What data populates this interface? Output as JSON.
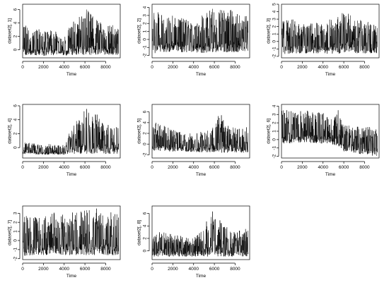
{
  "chart_data": [
    {
      "type": "line",
      "ylabel": "dataset2[, 1]",
      "xlabel": "Time",
      "x_ticks": [
        0,
        2000,
        4000,
        6000,
        8000
      ],
      "y_ticks": [
        0,
        2,
        4,
        6
      ],
      "xlim": [
        0,
        9400
      ],
      "ylim": [
        -1.2,
        6.8
      ],
      "profile": {
        "x": [
          0,
          1000,
          2000,
          3000,
          3700,
          4100,
          4800,
          5600,
          6200,
          7000,
          8000,
          9300
        ],
        "low": [
          -0.8,
          -0.8,
          -0.9,
          -0.8,
          -0.9,
          -0.9,
          -0.8,
          -0.8,
          -0.8,
          -0.8,
          -0.8,
          -0.8
        ],
        "high": [
          3.8,
          3.2,
          3.0,
          3.2,
          1.6,
          2.2,
          4.2,
          5.2,
          6.4,
          4.8,
          3.8,
          3.6
        ]
      }
    },
    {
      "type": "line",
      "ylabel": "dataset2[, 2]",
      "xlabel": "Time",
      "x_ticks": [
        0,
        2000,
        4000,
        6000,
        8000
      ],
      "y_ticks": [
        -2,
        -1,
        0,
        1,
        2,
        3,
        4
      ],
      "xlim": [
        0,
        9400
      ],
      "ylim": [
        -2.3,
        4.4
      ],
      "profile": {
        "x": [
          0,
          1000,
          2000,
          3000,
          4000,
          5000,
          6000,
          7000,
          8000,
          9300
        ],
        "low": [
          -1.8,
          -1.6,
          -1.6,
          -1.6,
          -1.6,
          -1.7,
          -1.6,
          -1.6,
          -1.6,
          -1.4
        ],
        "high": [
          4.1,
          3.0,
          3.0,
          2.6,
          2.2,
          3.2,
          4.0,
          3.8,
          3.6,
          3.2
        ]
      }
    },
    {
      "type": "line",
      "ylabel": "dataset2[, 3]",
      "xlabel": "Time",
      "x_ticks": [
        0,
        2000,
        4000,
        6000,
        8000
      ],
      "y_ticks": [
        -2,
        -1,
        0,
        1,
        2,
        3,
        4,
        5
      ],
      "xlim": [
        0,
        9400
      ],
      "ylim": [
        -2.2,
        5.0
      ],
      "profile": {
        "x": [
          0,
          1000,
          2000,
          3000,
          4000,
          5000,
          6000,
          7000,
          8000,
          9300
        ],
        "low": [
          -1.7,
          -1.6,
          -1.6,
          -1.6,
          -1.6,
          -1.7,
          -1.6,
          -1.6,
          -1.6,
          -1.6
        ],
        "high": [
          2.8,
          3.0,
          2.8,
          2.6,
          2.4,
          3.4,
          4.5,
          3.0,
          2.8,
          2.6
        ]
      }
    },
    {
      "type": "line",
      "ylabel": "dataset2[, 4]",
      "xlabel": "Time",
      "x_ticks": [
        0,
        2000,
        4000,
        6000,
        8000
      ],
      "y_ticks": [
        0,
        2,
        4,
        6
      ],
      "xlim": [
        0,
        9400
      ],
      "ylim": [
        -1.5,
        6.2
      ],
      "profile": {
        "x": [
          0,
          1000,
          2000,
          3000,
          4000,
          4300,
          5000,
          6000,
          6600,
          7500,
          8500,
          9300
        ],
        "low": [
          -0.9,
          -1.0,
          -1.0,
          -1.0,
          -1.0,
          -0.9,
          -0.9,
          -0.9,
          -0.9,
          -0.9,
          -0.9,
          -0.9
        ],
        "high": [
          0.8,
          0.6,
          0.6,
          0.5,
          0.4,
          1.5,
          3.5,
          5.5,
          6.0,
          4.2,
          3.0,
          3.2
        ]
      }
    },
    {
      "type": "line",
      "ylabel": "dataset2[, 5]",
      "xlabel": "Time",
      "x_ticks": [
        0,
        2000,
        4000,
        6000,
        8000
      ],
      "y_ticks": [
        -2,
        0,
        2,
        4,
        6
      ],
      "xlim": [
        0,
        9400
      ],
      "ylim": [
        -2.6,
        7.4
      ],
      "profile": {
        "x": [
          0,
          1000,
          2000,
          3000,
          4000,
          5000,
          6000,
          6600,
          7000,
          8000,
          9300
        ],
        "low": [
          -1.2,
          -1.3,
          -1.4,
          -1.4,
          -1.5,
          -1.5,
          -1.5,
          -1.6,
          -1.6,
          -1.6,
          -1.6
        ],
        "high": [
          4.2,
          3.6,
          2.8,
          2.0,
          2.0,
          2.4,
          3.8,
          7.0,
          4.0,
          3.0,
          3.4
        ]
      }
    },
    {
      "type": "line",
      "ylabel": "dataset2[, 6]",
      "xlabel": "Time",
      "x_ticks": [
        0,
        2000,
        4000,
        6000,
        8000
      ],
      "y_ticks": [
        -2,
        -1,
        0,
        1,
        2,
        3,
        4
      ],
      "xlim": [
        0,
        9400
      ],
      "ylim": [
        -2.2,
        4.2
      ],
      "profile": {
        "x": [
          0,
          1000,
          2000,
          3000,
          4000,
          5000,
          5500,
          6000,
          7000,
          8000,
          9300
        ],
        "low": [
          -0.6,
          -0.4,
          -0.4,
          -0.4,
          -0.5,
          -0.6,
          -0.8,
          -1.4,
          -1.6,
          -1.8,
          -2.0
        ],
        "high": [
          3.6,
          3.6,
          3.6,
          3.4,
          3.2,
          3.2,
          3.8,
          2.0,
          1.6,
          1.4,
          1.8
        ]
      }
    },
    {
      "type": "line",
      "ylabel": "dataset2[, 7]",
      "xlabel": "Time",
      "x_ticks": [
        0,
        2000,
        4000,
        6000,
        8000
      ],
      "y_ticks": [
        -2,
        -1,
        0,
        1,
        2,
        3
      ],
      "xlim": [
        0,
        9400
      ],
      "ylim": [
        -2.1,
        3.8
      ],
      "profile": {
        "x": [
          0,
          1000,
          2000,
          3000,
          4000,
          5000,
          6000,
          7000,
          8000,
          9300
        ],
        "low": [
          -1.7,
          -1.6,
          -1.6,
          -1.6,
          -1.6,
          -1.6,
          -1.6,
          -1.6,
          -1.6,
          -1.6
        ],
        "high": [
          2.8,
          2.6,
          2.6,
          3.4,
          2.8,
          3.2,
          3.6,
          3.6,
          3.2,
          3.0
        ]
      }
    },
    {
      "type": "line",
      "ylabel": "dataset2[, 8]",
      "xlabel": "Time",
      "x_ticks": [
        0,
        2000,
        4000,
        6000,
        8000
      ],
      "y_ticks": [
        0,
        2,
        4,
        6
      ],
      "xlim": [
        0,
        9400
      ],
      "ylim": [
        -1.4,
        7.2
      ],
      "profile": {
        "x": [
          0,
          1000,
          2000,
          3000,
          4000,
          5000,
          6000,
          7000,
          8000,
          9300
        ],
        "low": [
          -0.9,
          -0.9,
          -0.9,
          -0.9,
          -0.9,
          -0.9,
          -0.9,
          -0.9,
          -0.9,
          -0.9
        ],
        "high": [
          3.0,
          3.0,
          2.6,
          2.4,
          2.0,
          4.0,
          7.0,
          4.0,
          3.2,
          3.6
        ]
      }
    }
  ]
}
